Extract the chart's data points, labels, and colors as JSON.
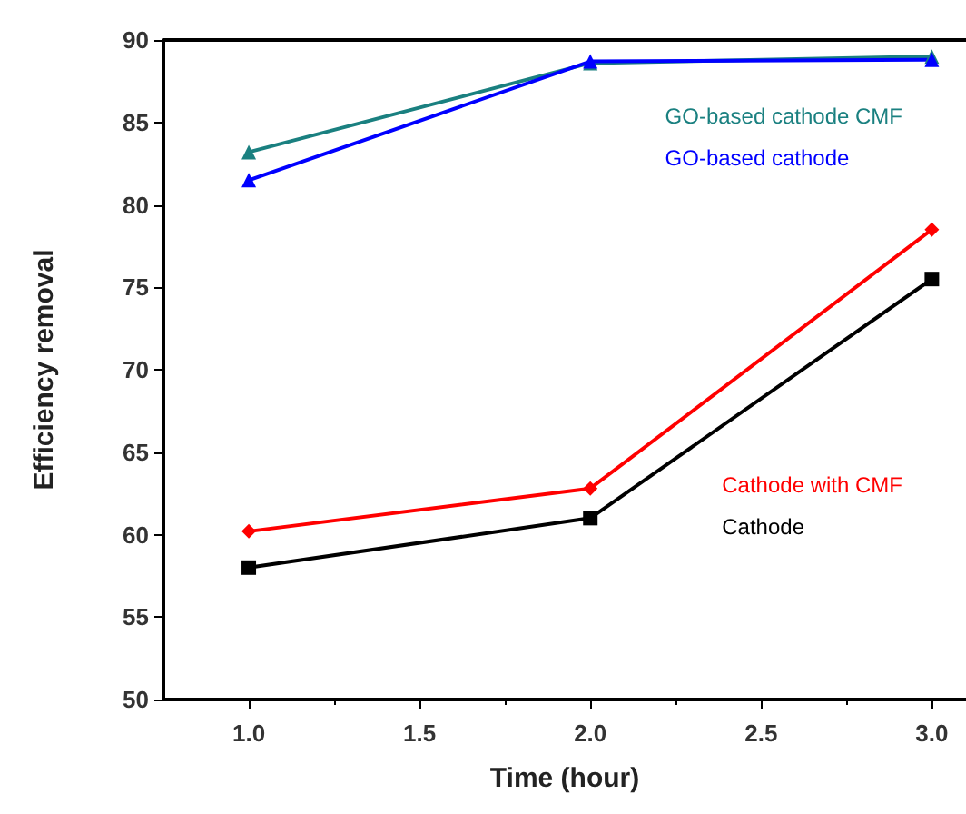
{
  "chart_data": {
    "type": "line",
    "xlabel": "Time (hour)",
    "ylabel": "Efficiency removal",
    "x": [
      1.0,
      2.0,
      3.0
    ],
    "series": [
      {
        "name": "GO-based cathode CMF",
        "color": "#1a8080",
        "marker": "triangle",
        "values": [
          83.2,
          88.6,
          89.0
        ]
      },
      {
        "name": "GO-based cathode",
        "color": "#0000ff",
        "marker": "triangle",
        "values": [
          81.5,
          88.7,
          88.8
        ]
      },
      {
        "name": "Cathode with CMF",
        "color": "#ff0000",
        "marker": "diamond",
        "values": [
          60.2,
          62.8,
          78.5
        ]
      },
      {
        "name": "Cathode",
        "color": "#000000",
        "marker": "square",
        "values": [
          58.0,
          61.0,
          75.5
        ]
      }
    ],
    "xlim": [
      0.75,
      3.1
    ],
    "xticks": [
      {
        "value": 1.0,
        "label": "1.0"
      },
      1.5,
      {
        "value": 2.0,
        "label": "2.0"
      },
      2.5,
      {
        "value": 3.0,
        "label": "3.0"
      }
    ],
    "ylim": [
      50,
      90
    ],
    "yticks": [
      50,
      55,
      60,
      65,
      70,
      75,
      80,
      85,
      90
    ],
    "grid": false,
    "legend": "right"
  }
}
